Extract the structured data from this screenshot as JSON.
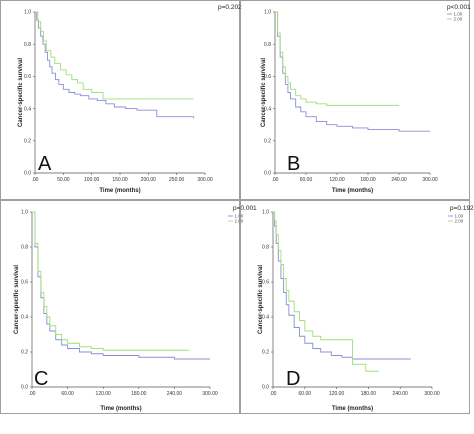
{
  "colors": {
    "series1": "#8a8ed8",
    "series2": "#9ee07a"
  },
  "chart_data": [
    {
      "type": "line",
      "letter": "A",
      "pvalue": "p=0.202",
      "xlabel": "Time (months)",
      "ylabel": "Cancer-specific survival",
      "xlim": [
        0,
        300
      ],
      "ylim": [
        0,
        1
      ],
      "xticks": [
        0,
        50,
        100,
        150,
        200,
        250,
        300
      ],
      "xticklabels": [
        ".00",
        "50.00",
        "100.00",
        "150.00",
        "200.00",
        "250.00",
        "300.00"
      ],
      "yticks": [
        0,
        0.2,
        0.4,
        0.6,
        0.8,
        1.0
      ],
      "yticklabels": [
        "0.0",
        "0.2",
        "0.4",
        "0.6",
        "0.8",
        "1.0"
      ],
      "legend": [],
      "series": [
        {
          "name": "1.00",
          "x": [
            0,
            3,
            6,
            10,
            14,
            18,
            22,
            26,
            30,
            36,
            42,
            50,
            60,
            70,
            80,
            95,
            110,
            125,
            140,
            160,
            180,
            205,
            215,
            250,
            280
          ],
          "y": [
            1.0,
            0.95,
            0.9,
            0.85,
            0.8,
            0.75,
            0.7,
            0.66,
            0.62,
            0.58,
            0.55,
            0.52,
            0.5,
            0.49,
            0.48,
            0.46,
            0.45,
            0.43,
            0.41,
            0.4,
            0.39,
            0.39,
            0.35,
            0.35,
            0.34
          ]
        },
        {
          "name": "2.00",
          "x": [
            0,
            5,
            10,
            15,
            20,
            28,
            35,
            45,
            55,
            65,
            75,
            85,
            100,
            120,
            150,
            200,
            250,
            280
          ],
          "y": [
            1.0,
            0.94,
            0.88,
            0.82,
            0.76,
            0.72,
            0.68,
            0.64,
            0.61,
            0.58,
            0.56,
            0.52,
            0.5,
            0.46,
            0.46,
            0.46,
            0.46,
            0.46
          ]
        }
      ]
    },
    {
      "type": "line",
      "letter": "B",
      "pvalue": "p<0.001",
      "xlabel": "Time (months)",
      "ylabel": "Cancer-specific survival",
      "xlim": [
        0,
        300
      ],
      "ylim": [
        0,
        1
      ],
      "xticks": [
        0,
        60,
        120,
        180,
        240,
        300
      ],
      "xticklabels": [
        ".00",
        "60.00",
        "120.00",
        "180.00",
        "240.00",
        "300.00"
      ],
      "yticks": [
        0,
        0.2,
        0.4,
        0.6,
        0.8,
        1.0
      ],
      "yticklabels": [
        "0.0",
        "0.2",
        "0.4",
        "0.6",
        "0.8",
        "1.0"
      ],
      "legend": [
        "1.00",
        "2.00"
      ],
      "series": [
        {
          "name": "1.00",
          "x": [
            0,
            5,
            10,
            15,
            20,
            25,
            30,
            40,
            50,
            60,
            80,
            100,
            120,
            150,
            180,
            200,
            240,
            300
          ],
          "y": [
            1.0,
            0.85,
            0.72,
            0.62,
            0.55,
            0.5,
            0.46,
            0.41,
            0.38,
            0.35,
            0.32,
            0.3,
            0.29,
            0.28,
            0.27,
            0.27,
            0.26,
            0.26
          ]
        },
        {
          "name": "2.00",
          "x": [
            0,
            5,
            10,
            15,
            20,
            25,
            30,
            40,
            50,
            60,
            80,
            100,
            120,
            150,
            180,
            240
          ],
          "y": [
            1.0,
            0.87,
            0.75,
            0.66,
            0.6,
            0.56,
            0.52,
            0.48,
            0.46,
            0.44,
            0.43,
            0.42,
            0.42,
            0.42,
            0.42,
            0.42
          ]
        }
      ]
    },
    {
      "type": "line",
      "letter": "C",
      "pvalue": "p=0.001",
      "xlabel": "Time (months)",
      "ylabel": "Cancer-specific survival",
      "xlim": [
        0,
        300
      ],
      "ylim": [
        0,
        1
      ],
      "xticks": [
        0,
        60,
        120,
        180,
        240,
        300
      ],
      "xticklabels": [
        ".00",
        "60.00",
        "120.00",
        "180.00",
        "240.00",
        "300.00"
      ],
      "yticks": [
        0,
        0.2,
        0.4,
        0.6,
        0.8,
        1.0
      ],
      "yticklabels": [
        "0.0",
        "0.2",
        "0.4",
        "0.6",
        "0.8",
        "1.0"
      ],
      "legend": [
        "1.00",
        "2.00"
      ],
      "series": [
        {
          "name": "1.00",
          "x": [
            0,
            5,
            10,
            15,
            20,
            25,
            30,
            40,
            50,
            60,
            80,
            100,
            120,
            150,
            180,
            210,
            240,
            270,
            300
          ],
          "y": [
            1.0,
            0.8,
            0.63,
            0.51,
            0.42,
            0.36,
            0.32,
            0.27,
            0.24,
            0.22,
            0.2,
            0.19,
            0.18,
            0.18,
            0.17,
            0.17,
            0.16,
            0.16,
            0.16
          ]
        },
        {
          "name": "2.00",
          "x": [
            0,
            5,
            10,
            15,
            20,
            25,
            30,
            40,
            50,
            60,
            80,
            100,
            120,
            150,
            180,
            210,
            240,
            265
          ],
          "y": [
            1.0,
            0.82,
            0.66,
            0.54,
            0.46,
            0.4,
            0.35,
            0.3,
            0.27,
            0.25,
            0.23,
            0.22,
            0.21,
            0.21,
            0.21,
            0.21,
            0.21,
            0.21
          ]
        }
      ]
    },
    {
      "type": "line",
      "letter": "D",
      "pvalue": "p=0.192",
      "xlabel": "Time (months)",
      "ylabel": "Cancer-specific survival",
      "xlim": [
        0,
        300
      ],
      "ylim": [
        0,
        1
      ],
      "xticks": [
        0,
        60,
        120,
        180,
        240,
        300
      ],
      "xticklabels": [
        ".00",
        "60.00",
        "120.00",
        "180.00",
        "240.00",
        "300.00"
      ],
      "yticks": [
        0,
        0.2,
        0.4,
        0.6,
        0.8,
        1.0
      ],
      "yticklabels": [
        "0.0",
        "0.2",
        "0.4",
        "0.6",
        "0.8",
        "1.0"
      ],
      "legend": [
        "1.00",
        "2.00"
      ],
      "series": [
        {
          "name": "1.00",
          "x": [
            0,
            3,
            6,
            10,
            15,
            20,
            25,
            30,
            40,
            50,
            60,
            75,
            90,
            110,
            130,
            150,
            200,
            260
          ],
          "y": [
            1.0,
            0.92,
            0.82,
            0.72,
            0.62,
            0.54,
            0.47,
            0.41,
            0.34,
            0.29,
            0.25,
            0.22,
            0.2,
            0.18,
            0.17,
            0.16,
            0.16,
            0.16
          ]
        },
        {
          "name": "2.00",
          "x": [
            0,
            3,
            6,
            10,
            15,
            20,
            25,
            30,
            40,
            50,
            60,
            75,
            90,
            110,
            130,
            150,
            175,
            200
          ],
          "y": [
            1.0,
            0.95,
            0.87,
            0.78,
            0.7,
            0.62,
            0.55,
            0.49,
            0.43,
            0.38,
            0.32,
            0.29,
            0.27,
            0.27,
            0.27,
            0.13,
            0.09,
            0.09
          ]
        }
      ]
    }
  ]
}
